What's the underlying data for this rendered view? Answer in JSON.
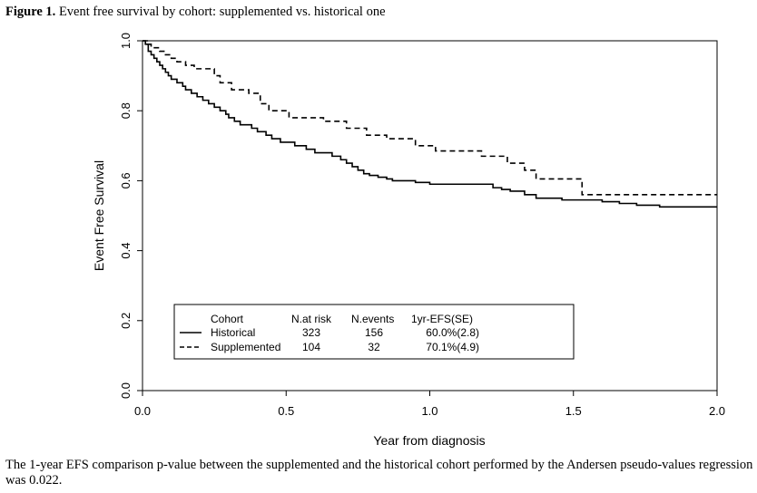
{
  "figure": {
    "label": "Figure 1.",
    "title": "Event free survival by cohort: supplemented vs. historical one"
  },
  "footnote": "The 1-year EFS comparison p-value between the supplemented and the historical cohort performed by the Andersen pseudo-values regression was 0.022.",
  "chart_data": {
    "type": "line",
    "subtype": "kaplan-meier-step",
    "xlabel": "Year from diagnosis",
    "ylabel": "Event Free Survival",
    "xlim": [
      0,
      2.0
    ],
    "ylim": [
      0,
      1.0
    ],
    "xticks": [
      "0.0",
      "0.5",
      "1.0",
      "1.5",
      "2.0"
    ],
    "yticks": [
      "0.0",
      "0.2",
      "0.4",
      "0.6",
      "0.8",
      "1.0"
    ],
    "legend": {
      "placement": "bottom-center",
      "headers": [
        "Cohort",
        "N.at risk",
        "N.events",
        "1yr-EFS(SE)"
      ],
      "rows": [
        {
          "cohort": "Historical",
          "at_risk": "323",
          "events": "156",
          "efs": "60.0%(2.8)",
          "style": "solid"
        },
        {
          "cohort": "Supplemented",
          "at_risk": "104",
          "events": "32",
          "efs": "70.1%(4.9)",
          "style": "dashed"
        }
      ]
    },
    "series": [
      {
        "name": "Historical",
        "style": "solid",
        "x": [
          0,
          0.01,
          0.02,
          0.03,
          0.04,
          0.05,
          0.06,
          0.07,
          0.08,
          0.09,
          0.1,
          0.12,
          0.14,
          0.15,
          0.17,
          0.19,
          0.21,
          0.23,
          0.25,
          0.27,
          0.29,
          0.3,
          0.32,
          0.34,
          0.36,
          0.38,
          0.4,
          0.43,
          0.45,
          0.48,
          0.5,
          0.53,
          0.57,
          0.6,
          0.66,
          0.69,
          0.71,
          0.73,
          0.75,
          0.77,
          0.79,
          0.82,
          0.85,
          0.87,
          0.9,
          0.95,
          1.0,
          1.05,
          1.15,
          1.22,
          1.25,
          1.28,
          1.33,
          1.37,
          1.46,
          1.54,
          1.6,
          1.66,
          1.72,
          1.8,
          2.0
        ],
        "y": [
          1.0,
          0.99,
          0.97,
          0.96,
          0.95,
          0.94,
          0.93,
          0.92,
          0.91,
          0.9,
          0.89,
          0.88,
          0.87,
          0.86,
          0.85,
          0.84,
          0.83,
          0.82,
          0.81,
          0.8,
          0.79,
          0.78,
          0.77,
          0.76,
          0.76,
          0.75,
          0.74,
          0.73,
          0.72,
          0.71,
          0.71,
          0.7,
          0.69,
          0.68,
          0.67,
          0.66,
          0.65,
          0.64,
          0.63,
          0.62,
          0.615,
          0.61,
          0.605,
          0.6,
          0.6,
          0.595,
          0.59,
          0.59,
          0.59,
          0.58,
          0.575,
          0.57,
          0.56,
          0.55,
          0.545,
          0.545,
          0.54,
          0.535,
          0.53,
          0.525,
          0.525
        ]
      },
      {
        "name": "Supplemented",
        "style": "dashed",
        "x": [
          0,
          0.02,
          0.03,
          0.06,
          0.08,
          0.1,
          0.12,
          0.15,
          0.18,
          0.25,
          0.27,
          0.31,
          0.37,
          0.41,
          0.44,
          0.51,
          0.63,
          0.71,
          0.78,
          0.85,
          0.95,
          1.02,
          1.18,
          1.27,
          1.33,
          1.37,
          1.53,
          2.0
        ],
        "y": [
          1.0,
          0.99,
          0.98,
          0.97,
          0.96,
          0.95,
          0.94,
          0.93,
          0.92,
          0.9,
          0.88,
          0.86,
          0.85,
          0.82,
          0.8,
          0.78,
          0.77,
          0.75,
          0.73,
          0.72,
          0.7,
          0.685,
          0.67,
          0.65,
          0.63,
          0.605,
          0.56,
          0.56
        ]
      }
    ]
  }
}
